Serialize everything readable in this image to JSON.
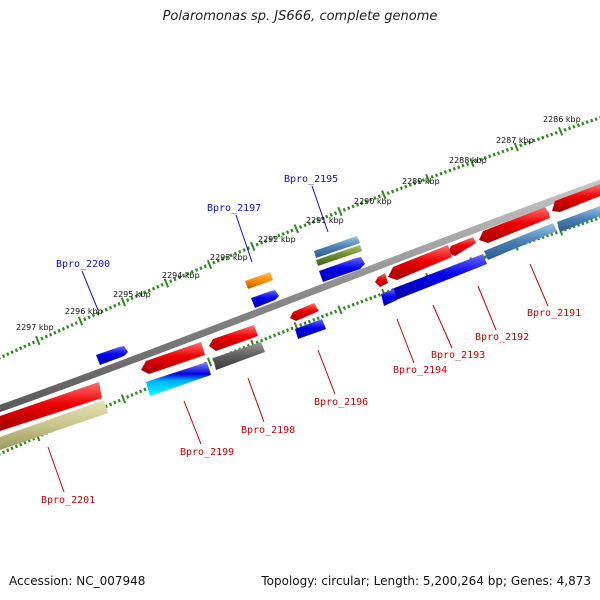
{
  "title": "Polaromonas sp. JS666, complete genome",
  "footer": {
    "accession": "Accession: NC_007948",
    "stats": "Topology: circular; Length: 5,200,264 bp; Genes: 4,873"
  },
  "colors": {
    "backbone": "#8c8c8c",
    "tick": "#2e8b1e",
    "forward_label": "#1010c8",
    "reverse_label": "#cc0000"
  },
  "scale_labels": [
    "2286 kbp",
    "2287 kbp",
    "2288 kbp",
    "2289 kbp",
    "2290 kbp",
    "2291 kbp",
    "2292 kbp",
    "2293 kbp",
    "2294 kbp",
    "2295 kbp",
    "2296 kbp",
    "2297 kbp"
  ],
  "gene_labels": [
    {
      "id": "Bpro_2195",
      "strand": "forward"
    },
    {
      "id": "Bpro_2197",
      "strand": "forward"
    },
    {
      "id": "Bpro_2200",
      "strand": "forward"
    },
    {
      "id": "Bpro_2191",
      "strand": "reverse"
    },
    {
      "id": "Bpro_2192",
      "strand": "reverse"
    },
    {
      "id": "Bpro_2193",
      "strand": "reverse"
    },
    {
      "id": "Bpro_2194",
      "strand": "reverse"
    },
    {
      "id": "Bpro_2196",
      "strand": "reverse"
    },
    {
      "id": "Bpro_2198",
      "strand": "reverse"
    },
    {
      "id": "Bpro_2199",
      "strand": "reverse"
    },
    {
      "id": "Bpro_2201",
      "strand": "reverse"
    }
  ]
}
